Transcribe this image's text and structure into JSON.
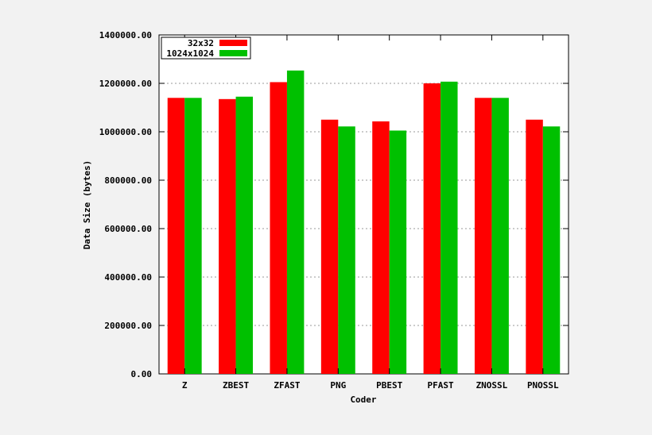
{
  "chart_data": {
    "type": "bar",
    "title": "",
    "xlabel": "Coder",
    "ylabel": "Data Size (bytes)",
    "categories": [
      "Z",
      "ZBEST",
      "ZFAST",
      "PNG",
      "PBEST",
      "PFAST",
      "ZNOSSL",
      "PNOSSL"
    ],
    "series": [
      {
        "name": "32x32",
        "color": "#ff0000",
        "values": [
          1140000,
          1135000,
          1205000,
          1050000,
          1043000,
          1200000,
          1140000,
          1050000
        ]
      },
      {
        "name": "1024x1024",
        "color": "#00c000",
        "values": [
          1140000,
          1145000,
          1253000,
          1022000,
          1005000,
          1207000,
          1140000,
          1022000
        ]
      }
    ],
    "ylim": [
      0,
      1400000
    ],
    "yticks": [
      "0.00",
      "200000.00",
      "400000.00",
      "600000.00",
      "800000.00",
      "1000000.00",
      "1200000.00",
      "1400000.00"
    ],
    "ytick_values": [
      0,
      200000,
      400000,
      600000,
      800000,
      1000000,
      1200000,
      1400000
    ],
    "grid": true,
    "legend_position": "top-left"
  }
}
